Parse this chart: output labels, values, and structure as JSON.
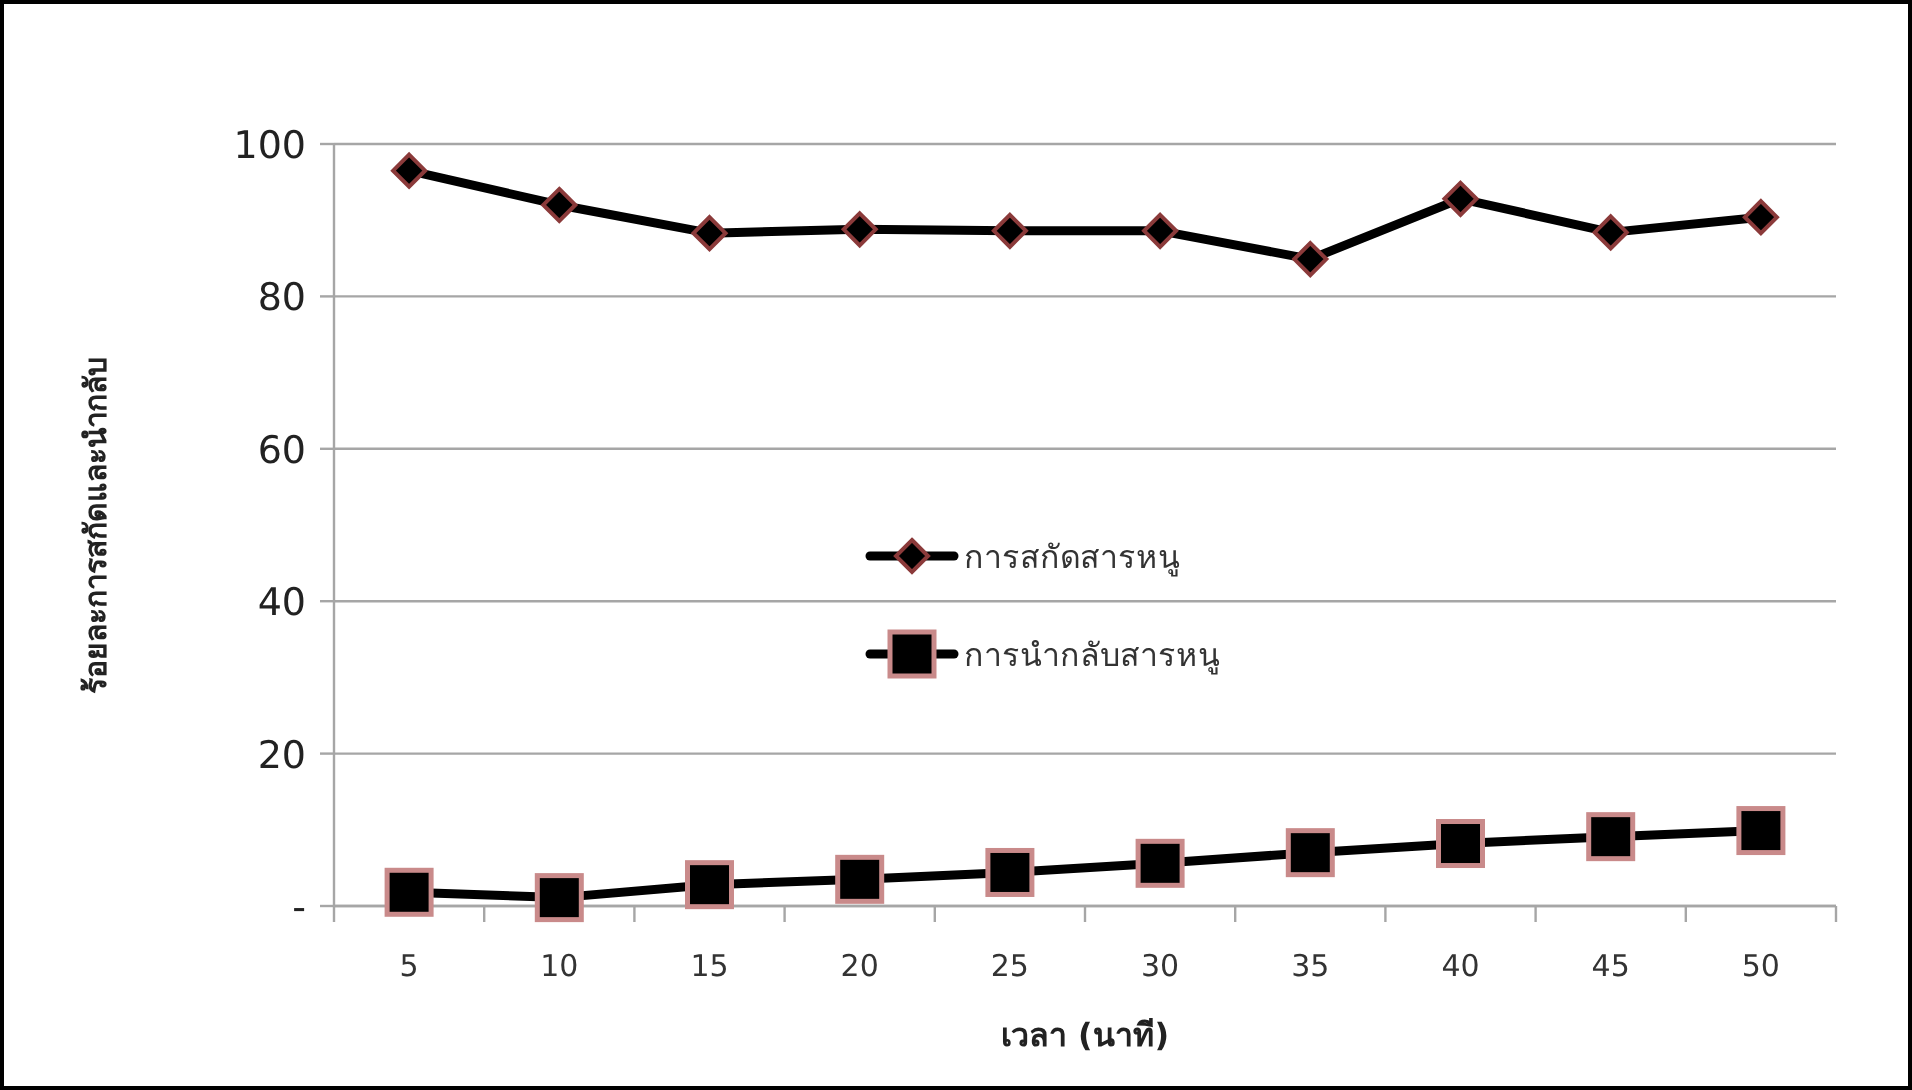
{
  "chart_data": {
    "type": "line",
    "xlabel": "เวลา (นาที)",
    "ylabel": "ร้อยละการสกัดและนำกลับ",
    "categories": [
      "5",
      "10",
      "15",
      "20",
      "25",
      "30",
      "35",
      "40",
      "45",
      "50"
    ],
    "series": [
      {
        "name": "การสกัดสารหนู",
        "color": "#000000",
        "marker": "diamond",
        "values": [
          96.5,
          92.0,
          88.3,
          88.8,
          88.6,
          88.6,
          84.9,
          92.8,
          88.4,
          90.4
        ]
      },
      {
        "name": "การนำกลับสารหนู",
        "color": "#000000",
        "marker": "square",
        "values": [
          1.8,
          1.1,
          2.8,
          3.5,
          4.4,
          5.6,
          7.0,
          8.2,
          9.1,
          9.9
        ]
      }
    ],
    "ylim": [
      0,
      100
    ],
    "yticks": [
      {
        "value": 0,
        "label": "-"
      },
      20,
      40,
      60,
      80,
      100
    ],
    "grid": "y",
    "legend": "center"
  }
}
